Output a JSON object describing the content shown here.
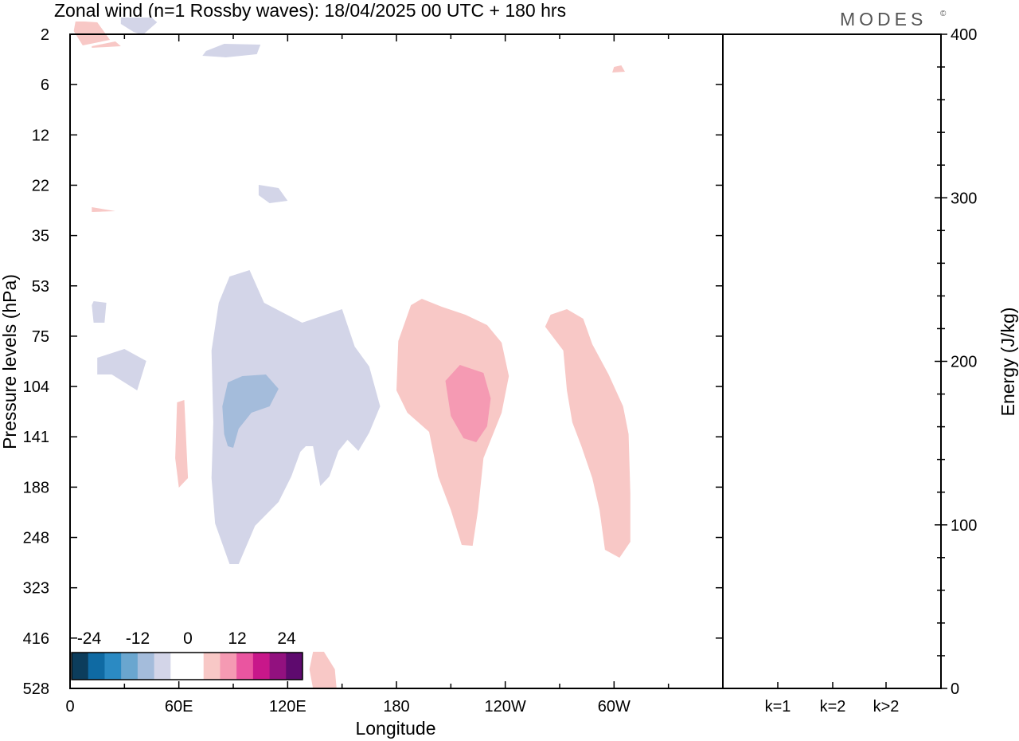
{
  "chart_data": {
    "type": "heatmap",
    "title": "Zonal wind (n=1 Rossby waves):  18/04/2025  00 UTC  + 180 hrs",
    "brand": "MODES",
    "brand_mark": "©",
    "xlabel": "Longitude",
    "ylabel": "Pressure levels (hPa)",
    "y2label": "Energy (J/kg)",
    "x_ticks": [
      "0",
      "60E",
      "120E",
      "180",
      "120W",
      "60W"
    ],
    "x_tick_values": [
      0,
      60,
      120,
      180,
      240,
      300
    ],
    "xlim": [
      0,
      360
    ],
    "y_ticks": [
      "2",
      "6",
      "12",
      "22",
      "35",
      "53",
      "75",
      "104",
      "141",
      "188",
      "248",
      "323",
      "416",
      "528"
    ],
    "y_scale": "log",
    "y_inverted": true,
    "energy_ticks": [
      "0",
      "100",
      "200",
      "300",
      "400"
    ],
    "energy_tick_values": [
      0,
      100,
      200,
      300,
      400
    ],
    "energy_ylim": [
      0,
      400
    ],
    "energy_categories": [
      "k=1",
      "k=2",
      "k>2"
    ],
    "energy_values": [
      0.3,
      0.2,
      0.2
    ],
    "colorbar": {
      "labels": [
        "-24",
        "-12",
        "0",
        "12",
        "24"
      ],
      "colors": [
        "#0c3d5c",
        "#0f6aa3",
        "#2b8ac3",
        "#6aa6cf",
        "#a4bcdb",
        "#d3d5e8",
        "#ffffff",
        "#ffffff",
        "#f8c8c6",
        "#f59ab3",
        "#ea55a0",
        "#c8178a",
        "#92117f",
        "#5e0a6e"
      ]
    },
    "contours": [
      {
        "name": "top-left-pink",
        "level": 4,
        "color": "#f8c8c6",
        "points": [
          [
            8,
            27
          ],
          [
            15,
            28
          ],
          [
            22,
            50
          ],
          [
            7,
            57
          ],
          [
            2,
            39
          ],
          [
            3,
            27
          ]
        ]
      },
      {
        "name": "top-left-pink-small",
        "level": 4,
        "color": "#f8c8c6",
        "points": [
          [
            12,
            58
          ],
          [
            25,
            52
          ],
          [
            28,
            58
          ],
          [
            12,
            60
          ]
        ]
      },
      {
        "name": "top-blue-top",
        "level": -4,
        "color": "#d3d5e8",
        "points": [
          [
            28,
            22
          ],
          [
            45,
            22
          ],
          [
            48,
            28
          ],
          [
            40,
            44
          ],
          [
            35,
            40
          ],
          [
            28,
            30
          ]
        ]
      },
      {
        "name": "blue-150",
        "level": -4,
        "color": "#d3d5e8",
        "points": [
          [
            75,
            64
          ],
          [
            85,
            55
          ],
          [
            105,
            56
          ],
          [
            103,
            68
          ],
          [
            86,
            72
          ],
          [
            73,
            70
          ]
        ]
      },
      {
        "name": "pink-small-65W",
        "level": 4,
        "color": "#f8c8c6",
        "points": [
          [
            300,
            84
          ],
          [
            304,
            82
          ],
          [
            306,
            90
          ],
          [
            299,
            91
          ]
        ]
      },
      {
        "name": "pink-tiny-pressure-28",
        "level": 4,
        "color": "#f8c8c6",
        "points": [
          [
            12,
            260
          ],
          [
            25,
            265
          ],
          [
            12,
            266
          ]
        ]
      },
      {
        "name": "blue-28",
        "level": -4,
        "color": "#d3d5e8",
        "points": [
          [
            104,
            232
          ],
          [
            115,
            236
          ],
          [
            120,
            252
          ],
          [
            110,
            255
          ],
          [
            104,
            245
          ]
        ]
      },
      {
        "name": "blue-75",
        "level": -4,
        "color": "#d3d5e8",
        "points": [
          [
            13,
            378
          ],
          [
            20,
            380
          ],
          [
            19,
            405
          ],
          [
            13,
            405
          ],
          [
            12,
            383
          ]
        ]
      },
      {
        "name": "blue-104",
        "level": -4,
        "color": "#d3d5e8",
        "points": [
          [
            15,
            449
          ],
          [
            30,
            438
          ],
          [
            42,
            453
          ],
          [
            37,
            490
          ],
          [
            23,
            470
          ],
          [
            15,
            470
          ]
        ]
      },
      {
        "name": "pink-188",
        "level": 4,
        "color": "#f8c8c6",
        "points": [
          [
            59,
            505
          ],
          [
            63,
            502
          ],
          [
            65,
            600
          ],
          [
            60,
            612
          ],
          [
            58,
            575
          ]
        ]
      },
      {
        "name": "blue-large-main",
        "level": -4,
        "color": "#d3d5e8",
        "points": [
          [
            88,
            347
          ],
          [
            99,
            339
          ],
          [
            107,
            380
          ],
          [
            128,
            405
          ],
          [
            150,
            388
          ],
          [
            157,
            435
          ],
          [
            165,
            460
          ],
          [
            171,
            510
          ],
          [
            165,
            543
          ],
          [
            159,
            566
          ],
          [
            153,
            552
          ],
          [
            148,
            566
          ],
          [
            143,
            598
          ],
          [
            138,
            610
          ],
          [
            134,
            560
          ],
          [
            130,
            560
          ],
          [
            127,
            567
          ],
          [
            122,
            598
          ],
          [
            115,
            630
          ],
          [
            102,
            660
          ],
          [
            93,
            708
          ],
          [
            88,
            708
          ],
          [
            80,
            657
          ],
          [
            78,
            600
          ],
          [
            79,
            530
          ],
          [
            78,
            440
          ],
          [
            82,
            380
          ]
        ]
      },
      {
        "name": "blue-core-141",
        "level": -8,
        "color": "#a4bcdb",
        "points": [
          [
            95,
            472
          ],
          [
            108,
            470
          ],
          [
            115,
            488
          ],
          [
            110,
            510
          ],
          [
            100,
            518
          ],
          [
            93,
            538
          ],
          [
            90,
            562
          ],
          [
            87,
            560
          ],
          [
            85,
            545
          ],
          [
            84,
            510
          ],
          [
            87,
            480
          ]
        ]
      },
      {
        "name": "pink-120W-outer",
        "level": 4,
        "color": "#f8c8c6",
        "points": [
          [
            194,
            375
          ],
          [
            205,
            385
          ],
          [
            218,
            395
          ],
          [
            230,
            408
          ],
          [
            238,
            430
          ],
          [
            242,
            472
          ],
          [
            238,
            518
          ],
          [
            228,
            575
          ],
          [
            225,
            640
          ],
          [
            222,
            685
          ],
          [
            216,
            684
          ],
          [
            210,
            640
          ],
          [
            203,
            598
          ],
          [
            198,
            542
          ],
          [
            186,
            518
          ],
          [
            180,
            490
          ],
          [
            181,
            428
          ],
          [
            188,
            383
          ]
        ]
      },
      {
        "name": "pink-120W-core",
        "level": 8,
        "color": "#f59ab3",
        "points": [
          [
            215,
            458
          ],
          [
            228,
            468
          ],
          [
            232,
            500
          ],
          [
            230,
            535
          ],
          [
            224,
            555
          ],
          [
            217,
            550
          ],
          [
            210,
            522
          ],
          [
            207,
            478
          ]
        ]
      },
      {
        "name": "pink-60W-band",
        "level": 4,
        "color": "#f8c8c6",
        "points": [
          [
            265,
            395
          ],
          [
            274,
            388
          ],
          [
            283,
            400
          ],
          [
            288,
            432
          ],
          [
            297,
            470
          ],
          [
            305,
            510
          ],
          [
            308,
            545
          ],
          [
            309,
            620
          ],
          [
            309,
            680
          ],
          [
            303,
            700
          ],
          [
            295,
            690
          ],
          [
            292,
            640
          ],
          [
            288,
            600
          ],
          [
            282,
            560
          ],
          [
            277,
            530
          ],
          [
            274,
            490
          ],
          [
            272,
            440
          ],
          [
            262,
            410
          ]
        ]
      },
      {
        "name": "pink-bottom-130E",
        "level": 4,
        "color": "#f8c8c6",
        "points": [
          [
            134,
            818
          ],
          [
            140,
            818
          ],
          [
            146,
            840
          ],
          [
            147,
            864
          ],
          [
            134,
            864
          ],
          [
            132,
            840
          ]
        ]
      }
    ]
  }
}
